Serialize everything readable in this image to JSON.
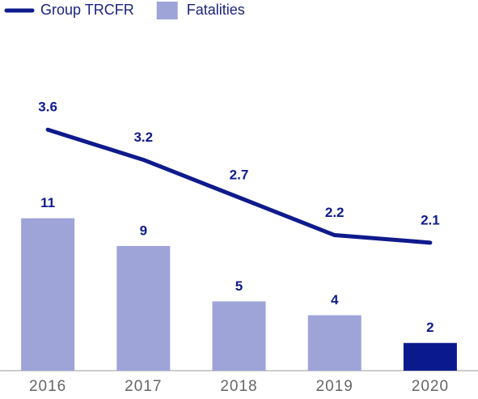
{
  "chart_data": {
    "type": "bar_line",
    "categories": [
      "2016",
      "2017",
      "2018",
      "2019",
      "2020"
    ],
    "series": [
      {
        "name": "Group TRCFR",
        "type": "line",
        "axis": "y2",
        "color": "#0f1a8c",
        "values": [
          3.6,
          3.2,
          2.7,
          2.2,
          2.1
        ]
      },
      {
        "name": "Fatalities",
        "type": "bar",
        "color": "#9ea4d8",
        "colors": [
          "#9ea4d8",
          "#9ea4d8",
          "#9ea4d8",
          "#9ea4d8",
          "#0a1a8e"
        ],
        "values": [
          11,
          9,
          5,
          4,
          2
        ]
      }
    ],
    "ylim": [
      0,
      25
    ],
    "y2lim": [
      0.4,
      5.0
    ],
    "legend": "top-left",
    "grid": false
  }
}
